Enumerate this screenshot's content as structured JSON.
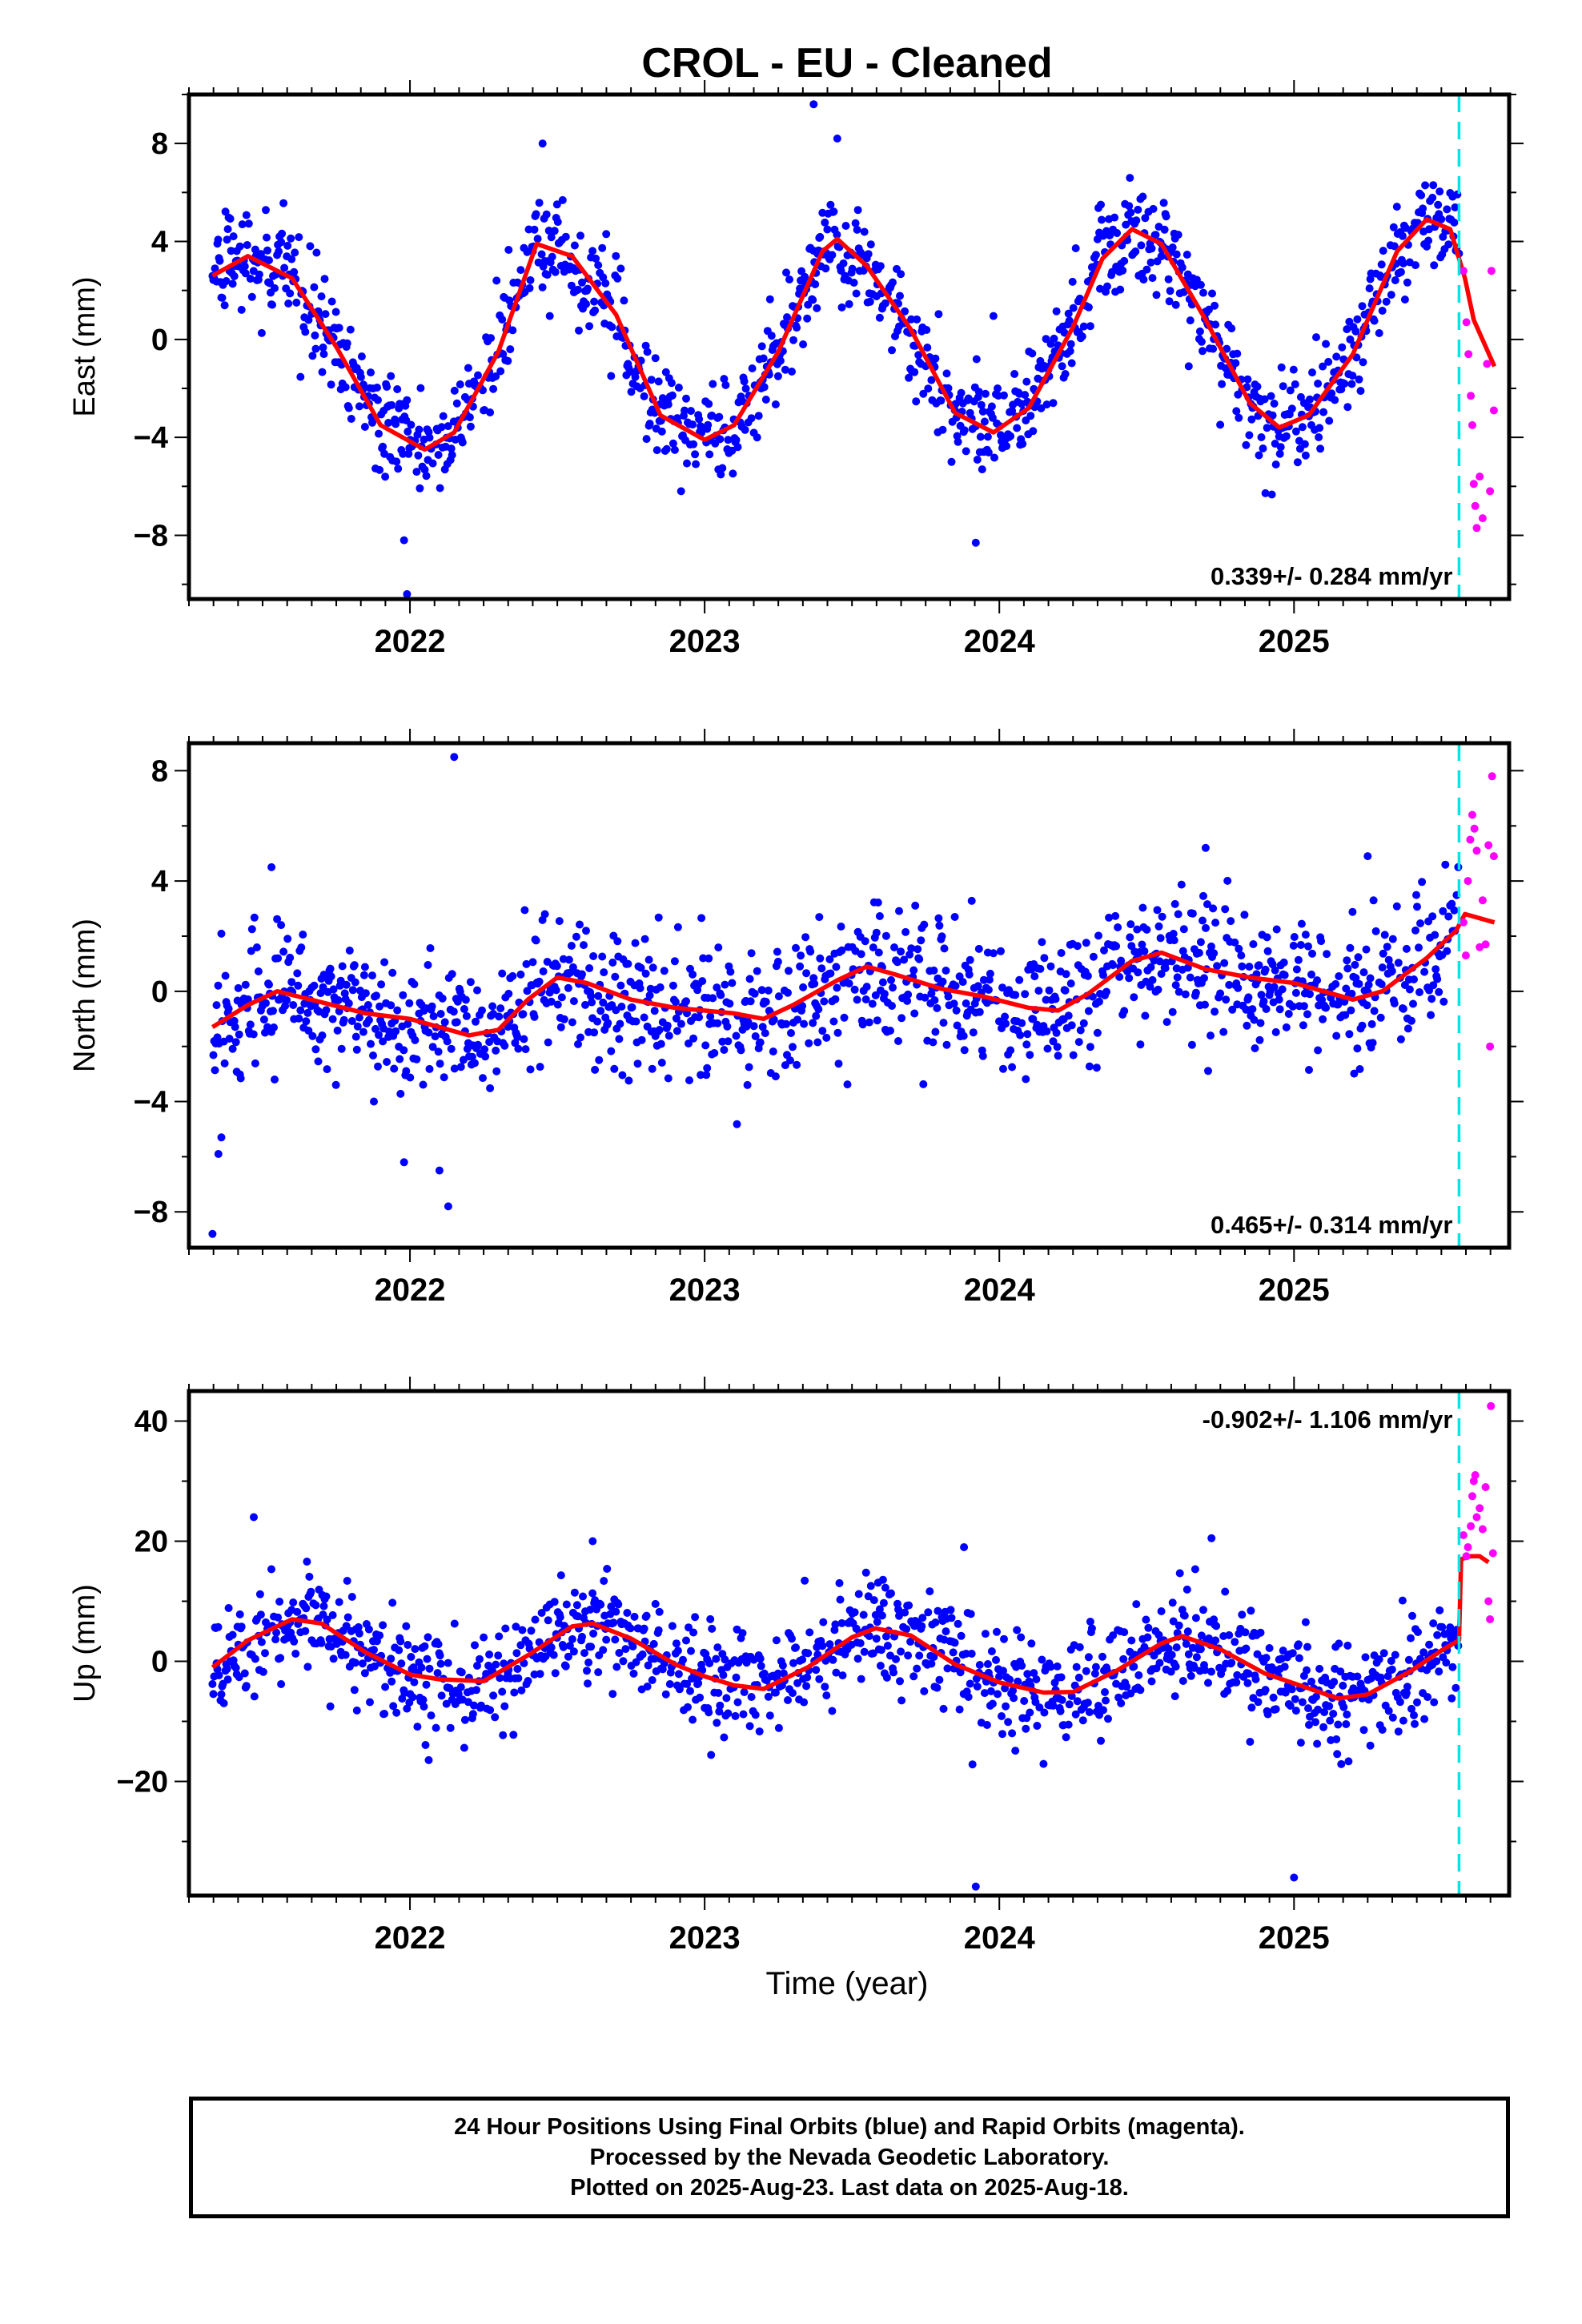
{
  "figure": {
    "title": "CROL  - EU - Cleaned",
    "xlabel": "Time (year)"
  },
  "footer": {
    "line1": "24 Hour Positions Using Final Orbits (blue) and Rapid Orbits (magenta).",
    "line2": "Processed by the Nevada Geodetic Laboratory.",
    "line3": "Plotted on 2025-Aug-23. Last data on 2025-Aug-18."
  },
  "colors": {
    "final": "#0000ff",
    "rapid": "#ff00ff",
    "model": "#ff0000",
    "marker": "#00e5e5"
  },
  "chart_data": [
    {
      "type": "scatter",
      "ylabel": "East (mm)",
      "xlim": [
        2021.25,
        2025.73
      ],
      "ylim": [
        -10.6,
        10.0
      ],
      "yticks": [
        -8,
        -4,
        0,
        4,
        8
      ],
      "yticklabels": [
        "−8",
        "−4",
        "0",
        "4",
        "8"
      ],
      "xticks": [
        2022,
        2023,
        2024,
        2025
      ],
      "xticklabels": [
        "2022",
        "2023",
        "2024",
        "2025"
      ],
      "rate_label": "0.339+/- 0.284 mm/yr",
      "rate_position": "bottom-right",
      "marker_x": 2025.56,
      "start": 2021.33,
      "end": 2025.56,
      "mean": 0.0,
      "trend_mm_per_yr": 0.339,
      "annual_amplitude": 4.1,
      "annual_peak": 0.45,
      "semiannual_amplitude": 0.25,
      "noise_sd": 1.0,
      "model_path": [
        [
          2021.33,
          2.6
        ],
        [
          2021.45,
          3.4
        ],
        [
          2021.6,
          2.5
        ],
        [
          2021.75,
          -0.3
        ],
        [
          2021.9,
          -3.5
        ],
        [
          2022.05,
          -4.5
        ],
        [
          2022.15,
          -3.8
        ],
        [
          2022.3,
          -0.5
        ],
        [
          2022.43,
          3.9
        ],
        [
          2022.55,
          3.4
        ],
        [
          2022.7,
          1.0
        ],
        [
          2022.85,
          -3.1
        ],
        [
          2023.0,
          -4.1
        ],
        [
          2023.1,
          -3.5
        ],
        [
          2023.25,
          -0.5
        ],
        [
          2023.4,
          3.6
        ],
        [
          2023.45,
          4.1
        ],
        [
          2023.55,
          3.0
        ],
        [
          2023.7,
          0.4
        ],
        [
          2023.85,
          -3.0
        ],
        [
          2023.98,
          -3.8
        ],
        [
          2024.1,
          -2.8
        ],
        [
          2024.25,
          0.5
        ],
        [
          2024.35,
          3.3
        ],
        [
          2024.45,
          4.5
        ],
        [
          2024.55,
          3.9
        ],
        [
          2024.7,
          0.8
        ],
        [
          2024.85,
          -2.6
        ],
        [
          2024.95,
          -3.6
        ],
        [
          2025.05,
          -3.1
        ],
        [
          2025.2,
          -0.6
        ],
        [
          2025.35,
          3.6
        ],
        [
          2025.45,
          4.9
        ],
        [
          2025.53,
          4.5
        ],
        [
          2025.58,
          2.5
        ],
        [
          2025.61,
          0.8
        ],
        [
          2025.68,
          -1.1
        ]
      ],
      "rapid_points": [
        [
          2025.575,
          2.8
        ],
        [
          2025.585,
          0.7
        ],
        [
          2025.592,
          -0.6
        ],
        [
          2025.6,
          -2.3
        ],
        [
          2025.605,
          -3.5
        ],
        [
          2025.61,
          -5.9
        ],
        [
          2025.615,
          -6.8
        ],
        [
          2025.62,
          -7.7
        ],
        [
          2025.63,
          -5.6
        ],
        [
          2025.64,
          -7.3
        ],
        [
          2025.655,
          -1.0
        ],
        [
          2025.665,
          -6.2
        ],
        [
          2025.67,
          2.8
        ],
        [
          2025.678,
          -2.9
        ]
      ],
      "outliers": [
        [
          2021.98,
          -8.2
        ],
        [
          2021.99,
          -10.4
        ],
        [
          2022.92,
          -6.2
        ],
        [
          2023.37,
          9.6
        ],
        [
          2023.92,
          -8.3
        ],
        [
          2022.45,
          8.0
        ],
        [
          2023.45,
          8.2
        ]
      ]
    },
    {
      "type": "scatter",
      "ylabel": "North (mm)",
      "xlim": [
        2021.25,
        2025.73
      ],
      "ylim": [
        -9.3,
        9.0
      ],
      "yticks": [
        -8,
        -4,
        0,
        4,
        8
      ],
      "yticklabels": [
        "−8",
        "−4",
        "0",
        "4",
        "8"
      ],
      "xticks": [
        2022,
        2023,
        2024,
        2025
      ],
      "xticklabels": [
        "2022",
        "2023",
        "2024",
        "2025"
      ],
      "rate_label": "0.465+/- 0.314 mm/yr",
      "rate_position": "bottom-right",
      "marker_x": 2025.56,
      "start": 2021.33,
      "end": 2025.56,
      "mean": -0.95,
      "trend_mm_per_yr": 0.465,
      "annual_amplitude": 0.9,
      "annual_peak": 0.6,
      "semiannual_amplitude": 0.0,
      "noise_sd": 1.25,
      "model_path": [
        [
          2021.33,
          -1.3
        ],
        [
          2021.45,
          -0.5
        ],
        [
          2021.55,
          0.0
        ],
        [
          2021.7,
          -0.4
        ],
        [
          2021.85,
          -0.8
        ],
        [
          2022.0,
          -1.0
        ],
        [
          2022.1,
          -1.3
        ],
        [
          2022.2,
          -1.6
        ],
        [
          2022.3,
          -1.4
        ],
        [
          2022.4,
          -0.3
        ],
        [
          2022.5,
          0.5
        ],
        [
          2022.6,
          0.3
        ],
        [
          2022.75,
          -0.3
        ],
        [
          2022.9,
          -0.6
        ],
        [
          2023.0,
          -0.7
        ],
        [
          2023.1,
          -0.8
        ],
        [
          2023.2,
          -1.0
        ],
        [
          2023.3,
          -0.5
        ],
        [
          2023.45,
          0.4
        ],
        [
          2023.55,
          0.9
        ],
        [
          2023.65,
          0.6
        ],
        [
          2023.8,
          0.1
        ],
        [
          2023.95,
          -0.2
        ],
        [
          2024.1,
          -0.6
        ],
        [
          2024.2,
          -0.7
        ],
        [
          2024.3,
          -0.1
        ],
        [
          2024.45,
          1.1
        ],
        [
          2024.55,
          1.4
        ],
        [
          2024.7,
          0.8
        ],
        [
          2024.85,
          0.5
        ],
        [
          2025.0,
          0.3
        ],
        [
          2025.1,
          0.0
        ],
        [
          2025.2,
          -0.3
        ],
        [
          2025.3,
          0.0
        ],
        [
          2025.45,
          1.2
        ],
        [
          2025.55,
          2.2
        ],
        [
          2025.58,
          2.8
        ],
        [
          2025.68,
          2.5
        ]
      ],
      "rapid_points": [
        [
          2025.575,
          2.5
        ],
        [
          2025.583,
          1.3
        ],
        [
          2025.59,
          4.0
        ],
        [
          2025.598,
          5.5
        ],
        [
          2025.605,
          6.4
        ],
        [
          2025.612,
          5.9
        ],
        [
          2025.62,
          5.1
        ],
        [
          2025.63,
          1.6
        ],
        [
          2025.64,
          3.3
        ],
        [
          2025.65,
          1.7
        ],
        [
          2025.66,
          5.3
        ],
        [
          2025.665,
          -2.0
        ],
        [
          2025.672,
          7.8
        ],
        [
          2025.678,
          4.9
        ]
      ],
      "outliers": [
        [
          2021.33,
          -8.8
        ],
        [
          2021.35,
          -5.9
        ],
        [
          2021.36,
          -5.3
        ],
        [
          2022.15,
          8.5
        ],
        [
          2022.13,
          -7.8
        ],
        [
          2021.98,
          -6.2
        ],
        [
          2022.1,
          -6.5
        ],
        [
          2024.7,
          5.2
        ],
        [
          2025.25,
          4.9
        ],
        [
          2021.53,
          4.5
        ]
      ]
    },
    {
      "type": "scatter",
      "ylabel": "Up (mm)",
      "xlim": [
        2021.25,
        2025.73
      ],
      "ylim": [
        -39,
        45
      ],
      "yticks": [
        -20,
        0,
        20,
        40
      ],
      "yticklabels": [
        "−20",
        "0",
        "20",
        "40"
      ],
      "xticks": [
        2022,
        2023,
        2024,
        2025
      ],
      "xticklabels": [
        "2022",
        "2023",
        "2024",
        "2025"
      ],
      "rate_label": "-0.902+/- 1.106 mm/yr",
      "rate_position": "top-right",
      "marker_x": 2025.56,
      "start": 2021.33,
      "end": 2025.56,
      "mean": 0.0,
      "trend_mm_per_yr": -0.902,
      "annual_amplitude": 5.5,
      "annual_peak": 0.6,
      "semiannual_amplitude": 0.0,
      "noise_sd": 4.5,
      "model_path": [
        [
          2021.33,
          -1.0
        ],
        [
          2021.45,
          3.5
        ],
        [
          2021.6,
          7.0
        ],
        [
          2021.7,
          6.3
        ],
        [
          2021.85,
          1.5
        ],
        [
          2022.0,
          -2.2
        ],
        [
          2022.1,
          -3.0
        ],
        [
          2022.25,
          -3.3
        ],
        [
          2022.4,
          1.0
        ],
        [
          2022.55,
          5.8
        ],
        [
          2022.62,
          6.3
        ],
        [
          2022.75,
          3.8
        ],
        [
          2022.9,
          -0.5
        ],
        [
          2023.0,
          -2.5
        ],
        [
          2023.1,
          -4.0
        ],
        [
          2023.2,
          -4.6
        ],
        [
          2023.35,
          -1.0
        ],
        [
          2023.5,
          4.0
        ],
        [
          2023.58,
          5.5
        ],
        [
          2023.7,
          4.3
        ],
        [
          2023.85,
          -0.5
        ],
        [
          2024.0,
          -3.5
        ],
        [
          2024.15,
          -5.2
        ],
        [
          2024.25,
          -5.1
        ],
        [
          2024.4,
          -1.5
        ],
        [
          2024.55,
          3.0
        ],
        [
          2024.62,
          4.2
        ],
        [
          2024.75,
          2.0
        ],
        [
          2024.9,
          -2.0
        ],
        [
          2025.05,
          -4.5
        ],
        [
          2025.15,
          -6.2
        ],
        [
          2025.25,
          -5.5
        ],
        [
          2025.4,
          -1.5
        ],
        [
          2025.5,
          1.8
        ],
        [
          2025.56,
          3.5
        ],
        [
          2025.567,
          17.0
        ],
        [
          2025.6,
          17.5
        ],
        [
          2025.63,
          17.5
        ],
        [
          2025.66,
          16.5
        ]
      ],
      "rapid_points": [
        [
          2025.575,
          21.0
        ],
        [
          2025.585,
          17.5
        ],
        [
          2025.59,
          19.0
        ],
        [
          2025.6,
          22.5
        ],
        [
          2025.605,
          27.5
        ],
        [
          2025.61,
          30.0
        ],
        [
          2025.615,
          31.0
        ],
        [
          2025.62,
          24.0
        ],
        [
          2025.63,
          25.5
        ],
        [
          2025.64,
          22.0
        ],
        [
          2025.65,
          29.0
        ],
        [
          2025.66,
          10.0
        ],
        [
          2025.665,
          7.0
        ],
        [
          2025.668,
          42.5
        ],
        [
          2025.675,
          18.0
        ]
      ],
      "outliers": [
        [
          2023.92,
          -37.5
        ],
        [
          2025.0,
          -36.0
        ],
        [
          2021.47,
          24.0
        ],
        [
          2022.62,
          20.0
        ],
        [
          2024.72,
          20.5
        ],
        [
          2023.88,
          19.0
        ]
      ]
    }
  ]
}
